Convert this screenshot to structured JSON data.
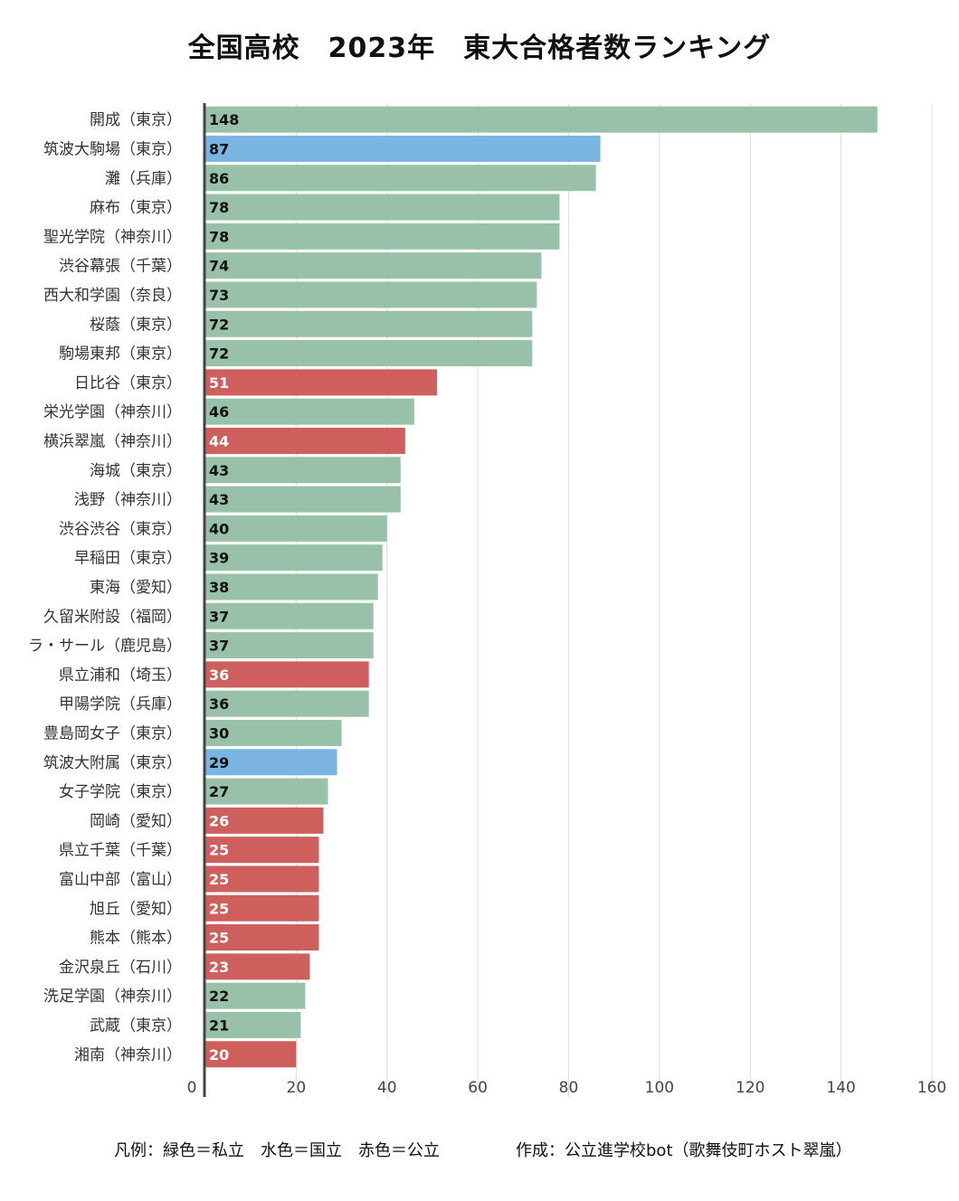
{
  "colors": {
    "private": "#99c1a9",
    "national": "#7ab5e1",
    "public": "#ce5f5d"
  },
  "footer": {
    "legend": "凡例：緑色＝私立　水色＝国立　赤色＝公立",
    "credit": "作成：公立進学校bot（歌舞伎町ホスト翠嵐）"
  },
  "chart_data": {
    "type": "bar",
    "orientation": "horizontal",
    "title": "全国高校　2023年　東大合格者数ランキング",
    "xlabel": "",
    "ylabel": "",
    "xlim": [
      0,
      160
    ],
    "xticks": [
      0,
      20,
      40,
      60,
      80,
      100,
      120,
      140,
      160
    ],
    "grid": true,
    "legend_position": "bottom-left",
    "categories": [
      "開成（東京）",
      "筑波大駒場（東京）",
      "灘（兵庫）",
      "麻布（東京）",
      "聖光学院（神奈川）",
      "渋谷幕張（千葉）",
      "西大和学園（奈良）",
      "桜蔭（東京）",
      "駒場東邦（東京）",
      "日比谷（東京）",
      "栄光学園（神奈川）",
      "横浜翠嵐（神奈川）",
      "海城（東京）",
      "浅野（神奈川）",
      "渋谷渋谷（東京）",
      "早稲田（東京）",
      "東海（愛知）",
      "久留米附設（福岡）",
      "ラ・サール（鹿児島）",
      "県立浦和（埼玉）",
      "甲陽学院（兵庫）",
      "豊島岡女子（東京）",
      "筑波大附属（東京）",
      "女子学院（東京）",
      "岡崎（愛知）",
      "県立千葉（千葉）",
      "富山中部（富山）",
      "旭丘（愛知）",
      "熊本（熊本）",
      "金沢泉丘（石川）",
      "洗足学園（神奈川）",
      "武蔵（東京）",
      "湘南（神奈川）"
    ],
    "values": [
      148,
      87,
      86,
      78,
      78,
      74,
      73,
      72,
      72,
      51,
      46,
      44,
      43,
      43,
      40,
      39,
      38,
      37,
      37,
      36,
      36,
      30,
      29,
      27,
      26,
      25,
      25,
      25,
      25,
      23,
      22,
      21,
      20
    ],
    "types": [
      "private",
      "national",
      "private",
      "private",
      "private",
      "private",
      "private",
      "private",
      "private",
      "public",
      "private",
      "public",
      "private",
      "private",
      "private",
      "private",
      "private",
      "private",
      "private",
      "public",
      "private",
      "private",
      "national",
      "private",
      "public",
      "public",
      "public",
      "public",
      "public",
      "public",
      "private",
      "private",
      "public"
    ]
  }
}
